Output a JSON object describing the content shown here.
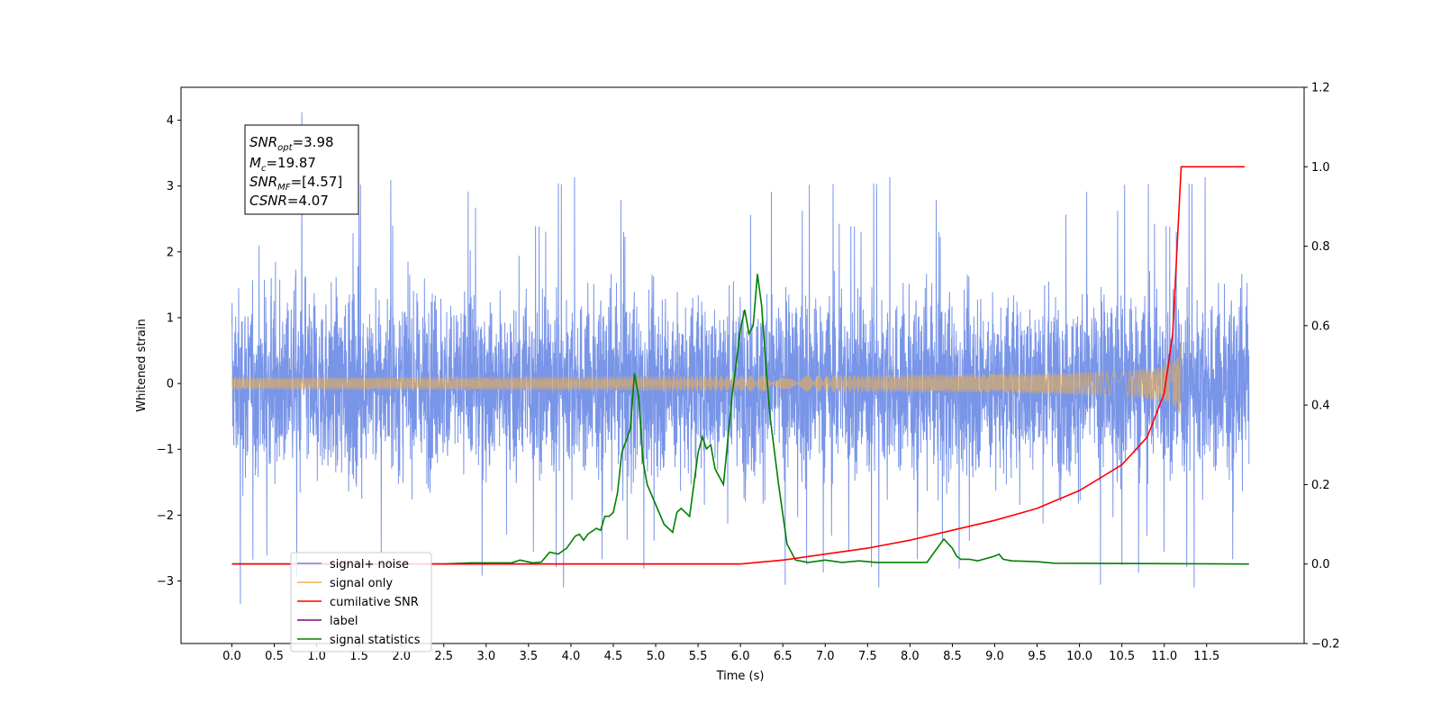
{
  "chart_data": {
    "type": "line",
    "xlabel": "Time (s)",
    "ylabel_left": "Whitened strain",
    "ylabel_right": "",
    "xlim": [
      -0.6,
      12.65
    ],
    "ylim_left": [
      -3.95,
      4.5
    ],
    "ylim_right": [
      -0.2,
      1.2
    ],
    "x_ticks": [
      "0.0",
      "0.5",
      "1.0",
      "1.5",
      "2.0",
      "2.5",
      "3.0",
      "3.5",
      "4.0",
      "4.5",
      "5.0",
      "5.5",
      "6.0",
      "6.5",
      "7.0",
      "7.5",
      "8.0",
      "8.5",
      "9.0",
      "9.5",
      "10.0",
      "10.5",
      "11.0",
      "11.5"
    ],
    "y_ticks_left": [
      "−3",
      "−2",
      "−1",
      "0",
      "1",
      "2",
      "3",
      "4"
    ],
    "y_ticks_right": [
      "−0.2",
      "0.0",
      "0.2",
      "0.4",
      "0.6",
      "0.8",
      "1.0",
      "1.2"
    ],
    "grid": false,
    "legend_position": "lower-left",
    "info_box": {
      "lines": [
        {
          "sym": "SNR",
          "sub": "opt",
          "val": "=3.98"
        },
        {
          "sym": "M",
          "sub": "c",
          "val": "=19.87"
        },
        {
          "sym": "SNR",
          "sub": "MF",
          "val": "=[4.57]"
        },
        {
          "sym": "CSNR",
          "sub": "",
          "val": "=4.07"
        }
      ]
    },
    "series": [
      {
        "name": "signal+ noise",
        "axis": "left",
        "color": "#6a89e6",
        "kind": "noise",
        "x_range": [
          0.0,
          12.0
        ],
        "y_band": [
          -1.5,
          1.5
        ],
        "y_extremes": [
          -3.35,
          4.12
        ]
      },
      {
        "name": "signal only",
        "axis": "left",
        "color": "#f5b041",
        "kind": "chirp",
        "x_range": [
          0.0,
          11.2
        ],
        "peak_amplitude": 0.8,
        "merger_time": 11.2
      },
      {
        "name": "cumilative SNR",
        "axis": "right",
        "color": "#ff0000",
        "x": [
          0.0,
          6.0,
          6.5,
          7.0,
          7.5,
          8.0,
          8.5,
          9.0,
          9.5,
          10.0,
          10.5,
          10.8,
          11.0,
          11.1,
          11.2,
          11.95
        ],
        "y": [
          0.0,
          0.0,
          0.01,
          0.025,
          0.04,
          0.06,
          0.085,
          0.11,
          0.14,
          0.185,
          0.25,
          0.32,
          0.43,
          0.58,
          1.0,
          1.0
        ]
      },
      {
        "name": "label",
        "axis": "right",
        "color": "#800080",
        "x": [
          0.0,
          6.0
        ],
        "y": [
          0.0,
          0.0
        ]
      },
      {
        "name": "signal statistics",
        "axis": "right",
        "color": "#008000",
        "x": [
          0.0,
          2.5,
          2.8,
          3.3,
          3.4,
          3.55,
          3.65,
          3.75,
          3.85,
          3.95,
          4.05,
          4.1,
          4.15,
          4.2,
          4.3,
          4.35,
          4.4,
          4.45,
          4.5,
          4.55,
          4.6,
          4.7,
          4.75,
          4.8,
          4.85,
          4.9,
          5.0,
          5.1,
          5.2,
          5.25,
          5.3,
          5.4,
          5.5,
          5.55,
          5.6,
          5.65,
          5.7,
          5.8,
          5.9,
          6.0,
          6.05,
          6.1,
          6.15,
          6.2,
          6.25,
          6.3,
          6.35,
          6.45,
          6.55,
          6.65,
          6.8,
          7.0,
          7.2,
          7.4,
          7.6,
          8.0,
          8.2,
          8.4,
          8.5,
          8.55,
          8.6,
          8.7,
          8.8,
          9.0,
          9.05,
          9.1,
          9.2,
          9.5,
          9.7,
          12.0
        ],
        "y": [
          0.0,
          0.0,
          0.003,
          0.003,
          0.01,
          0.003,
          0.005,
          0.03,
          0.025,
          0.04,
          0.07,
          0.075,
          0.06,
          0.075,
          0.09,
          0.085,
          0.12,
          0.12,
          0.13,
          0.18,
          0.28,
          0.34,
          0.48,
          0.42,
          0.26,
          0.2,
          0.15,
          0.1,
          0.08,
          0.13,
          0.14,
          0.12,
          0.28,
          0.32,
          0.29,
          0.3,
          0.24,
          0.2,
          0.42,
          0.59,
          0.64,
          0.58,
          0.6,
          0.73,
          0.65,
          0.5,
          0.37,
          0.2,
          0.05,
          0.01,
          0.004,
          0.01,
          0.004,
          0.008,
          0.004,
          0.004,
          0.004,
          0.063,
          0.04,
          0.02,
          0.012,
          0.012,
          0.008,
          0.02,
          0.025,
          0.012,
          0.008,
          0.006,
          0.002,
          0.0
        ]
      }
    ]
  }
}
